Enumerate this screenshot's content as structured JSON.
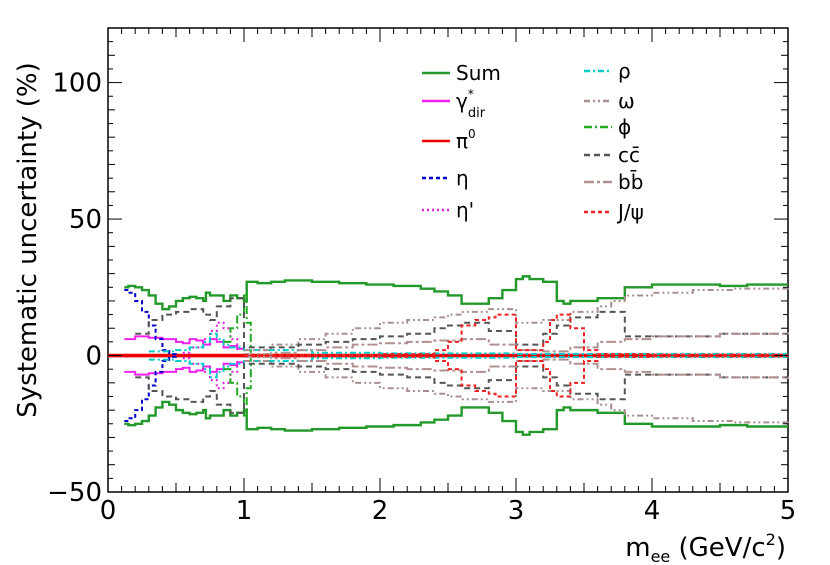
{
  "chart_data": {
    "type": "line",
    "title": "",
    "xlabel": "m_ee (GeV/c^2)",
    "ylabel": "Systematic uncertainty (%)",
    "xlim": [
      0,
      5
    ],
    "ylim": [
      -50,
      120
    ],
    "x_ticks": [
      {
        "value": 0,
        "label": "0"
      },
      {
        "value": 1,
        "label": "1"
      },
      {
        "value": 2,
        "label": "2"
      },
      {
        "value": 3,
        "label": "3"
      },
      {
        "value": 4,
        "label": "4"
      },
      {
        "value": 5,
        "label": "5"
      }
    ],
    "y_ticks": [
      {
        "value": -50,
        "label": "−50"
      },
      {
        "value": 0,
        "label": "0"
      },
      {
        "value": 50,
        "label": "50"
      },
      {
        "value": 100,
        "label": "100"
      }
    ],
    "symmetric_bands": true,
    "series": [
      {
        "name": "Sum",
        "label": "Sum",
        "color": "#22992a",
        "dash": "solid",
        "x": [
          0.12,
          0.15,
          0.2,
          0.25,
          0.3,
          0.35,
          0.4,
          0.45,
          0.5,
          0.55,
          0.6,
          0.65,
          0.7,
          0.72,
          0.75,
          0.8,
          0.85,
          0.9,
          0.95,
          1.0,
          1.02,
          1.05,
          1.1,
          1.2,
          1.3,
          1.5,
          1.7,
          1.9,
          2.1,
          2.2,
          2.3,
          2.4,
          2.5,
          2.6,
          2.8,
          2.9,
          3.0,
          3.05,
          3.1,
          3.2,
          3.3,
          3.35,
          3.4,
          3.5,
          3.6,
          3.7,
          3.8,
          4.0,
          4.2,
          4.5,
          4.7,
          5.0
        ],
        "y": [
          25,
          25.5,
          25,
          24,
          22,
          19,
          17,
          18,
          20,
          21,
          21.5,
          21,
          20,
          23,
          22,
          22,
          20,
          22,
          21,
          20,
          27,
          27,
          26.5,
          27,
          27.5,
          27,
          26.5,
          26,
          25.5,
          25.5,
          24.5,
          23.5,
          22,
          19,
          21,
          24,
          28,
          29,
          28,
          27,
          20,
          19,
          20,
          20,
          21,
          21,
          25,
          26,
          26,
          25.5,
          26,
          26
        ]
      },
      {
        "name": "gamma_dir",
        "label": "γ",
        "label_sup": "*",
        "label_sub": "dir",
        "color": "#ee22ee",
        "dash": "solid",
        "x": [
          0.12,
          0.2,
          0.3,
          0.4,
          0.5,
          0.55,
          0.6,
          0.65,
          0.7,
          0.75,
          0.8,
          0.85,
          0.9,
          0.95,
          1.0
        ],
        "y": [
          6,
          7,
          6.5,
          6,
          5,
          4.5,
          6,
          5.5,
          4,
          6,
          5,
          3,
          3.5,
          2.5,
          2
        ]
      },
      {
        "name": "pi0",
        "label": "π",
        "label_sup": "0",
        "color": "#ee0000",
        "dash": "solid",
        "x": [
          0.0,
          5.0
        ],
        "y": [
          0.3,
          0.3
        ]
      },
      {
        "name": "eta",
        "label": "η",
        "color": "#0000cc",
        "dash": "4,3",
        "x": [
          0.12,
          0.15,
          0.2,
          0.25,
          0.3,
          0.35,
          0.4,
          0.45,
          0.5
        ],
        "y": [
          24,
          23,
          20,
          16,
          11,
          6,
          2,
          0.5,
          0.3
        ]
      },
      {
        "name": "eta_prime",
        "label": "η'",
        "color": "#dd22dd",
        "dash": "2,3",
        "x": [
          0.55,
          0.6,
          0.7,
          0.75,
          0.8,
          0.85,
          0.9,
          0.95
        ],
        "y": [
          1,
          3,
          6,
          9,
          12,
          10,
          6,
          2
        ]
      },
      {
        "name": "rho",
        "label": "ρ",
        "color": "#00cccc",
        "dash": "6,3,2,3",
        "x": [
          0.3,
          0.5,
          0.6,
          0.7,
          0.75,
          0.8,
          0.85,
          0.9,
          1.0,
          1.5,
          2.0,
          3.0,
          4.0,
          5.0
        ],
        "y": [
          1.5,
          2,
          3,
          5,
          8,
          6,
          4,
          3,
          2,
          1,
          0.8,
          0.6,
          0.6,
          0.6
        ]
      },
      {
        "name": "omega",
        "label": "ω",
        "color": "#a89090",
        "dash": "6,3,2,3,2,3",
        "x": [
          1.0,
          1.2,
          1.4,
          1.6,
          1.8,
          2.0,
          2.2,
          2.4,
          2.5,
          2.6,
          2.8,
          3.0,
          3.2,
          3.4,
          3.6,
          3.7,
          3.8,
          4.0,
          4.3,
          4.6,
          5.0
        ],
        "y": [
          2,
          4,
          6,
          8,
          10,
          12,
          13,
          14,
          15,
          16,
          17,
          12,
          13,
          16,
          18,
          20,
          22,
          23,
          24,
          24.5,
          25
        ]
      },
      {
        "name": "phi",
        "label": "ϕ",
        "color": "#22aa22",
        "dash": "8,3,2,3",
        "x": [
          0.85,
          0.9,
          0.95,
          1.0,
          1.02,
          1.05
        ],
        "y": [
          5,
          10,
          15,
          22,
          12,
          1
        ]
      },
      {
        "name": "ccbar",
        "label": "cc̄",
        "color": "#555555",
        "dash": "6,4",
        "x": [
          0.2,
          0.3,
          0.4,
          0.5,
          0.6,
          0.7,
          0.75,
          0.8,
          0.9,
          1.0,
          1.2,
          1.4,
          1.6,
          1.8,
          2.0,
          2.2,
          2.4,
          2.5,
          2.6,
          2.8,
          3.0,
          3.2,
          3.3,
          3.4,
          3.5,
          3.6,
          3.7,
          3.8,
          4.0,
          4.5,
          5.0
        ],
        "y": [
          8,
          13,
          15,
          16,
          17,
          15,
          13,
          18,
          21,
          3,
          3,
          4,
          5,
          6,
          7,
          8,
          10,
          11,
          12,
          9,
          4,
          8,
          11,
          14,
          14,
          16,
          16,
          7,
          7,
          8,
          8
        ]
      },
      {
        "name": "bbbar",
        "label": "bb̄",
        "color": "#b09090",
        "dash": "10,3,3,3",
        "x": [
          1.0,
          1.2,
          1.4,
          1.6,
          1.8,
          2.0,
          2.2,
          2.4,
          2.6,
          2.8,
          3.0,
          3.2,
          3.4,
          3.6,
          3.8,
          4.0,
          4.5,
          5.0
        ],
        "y": [
          0.5,
          1,
          2,
          3,
          4,
          4.5,
          5,
          5.5,
          6,
          4,
          2,
          1.5,
          3,
          5,
          6,
          7,
          8,
          8.5
        ]
      },
      {
        "name": "jpsi",
        "label": "J/ψ",
        "color": "#ee2222",
        "dash": "4,3",
        "x": [
          1.0,
          2.0,
          2.4,
          2.5,
          2.6,
          2.7,
          2.8,
          2.85,
          2.9,
          3.0,
          3.1,
          3.2,
          3.25,
          3.3,
          3.35,
          3.4,
          3.5,
          3.6,
          4.0,
          5.0
        ],
        "y": [
          0.2,
          0.5,
          2,
          5,
          11,
          13,
          14,
          15,
          15,
          2,
          2,
          5,
          13,
          15,
          15,
          10,
          2,
          0.5,
          0.3,
          0.3
        ]
      }
    ]
  }
}
